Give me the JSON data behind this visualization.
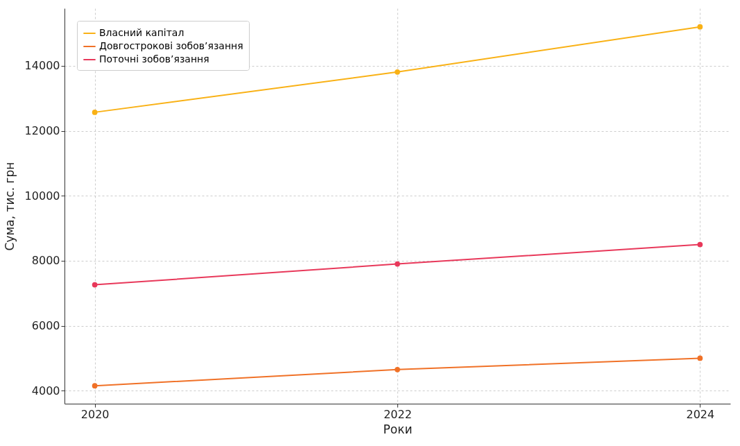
{
  "chart_data": {
    "type": "line",
    "xlabel": "Роки",
    "ylabel": "Сума, тис. грн",
    "x": [
      2020,
      2022,
      2024
    ],
    "xlim": [
      2019.8,
      2024.2
    ],
    "xticks": [
      2020,
      2022,
      2024
    ],
    "ylim": [
      3600,
      15770
    ],
    "yticks": [
      4000,
      6000,
      8000,
      10000,
      12000,
      14000
    ],
    "series": [
      {
        "name": "Власний капітал",
        "color": "#f9b115",
        "values": [
          12570,
          13810,
          15200
        ]
      },
      {
        "name": "Довгострокові зобов’язання",
        "color": "#f07127",
        "values": [
          4150,
          4650,
          5000
        ]
      },
      {
        "name": "Поточні зобов’язання",
        "color": "#e8385a",
        "values": [
          7260,
          7900,
          8500
        ]
      }
    ],
    "grid": true,
    "legend": "top left",
    "marker": "circle",
    "line_style": "solid"
  }
}
